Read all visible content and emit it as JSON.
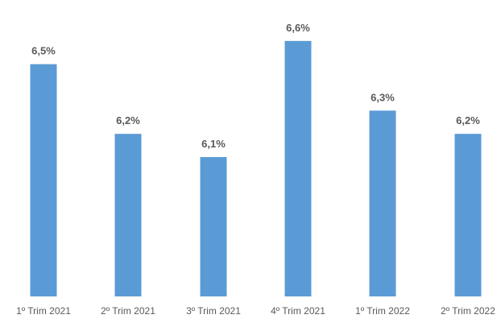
{
  "chart_data": {
    "type": "bar",
    "title": "",
    "xlabel": "",
    "ylabel": "",
    "categories": [
      "1º Trim 2021",
      "2º Trim 2021",
      "3º Trim 2021",
      "4º Trim 2021",
      "1º Trim 2022",
      "2º Trim 2022"
    ],
    "values": [
      6.5,
      6.2,
      6.1,
      6.6,
      6.3,
      6.2
    ],
    "data_labels": [
      "6,5%",
      "6,2%",
      "6,1%",
      "6,6%",
      "6,3%",
      "6,2%"
    ],
    "ylim": [
      5.5,
      6.7
    ],
    "grid": false,
    "legend": "none",
    "bar_color": "#5B9BD5"
  }
}
